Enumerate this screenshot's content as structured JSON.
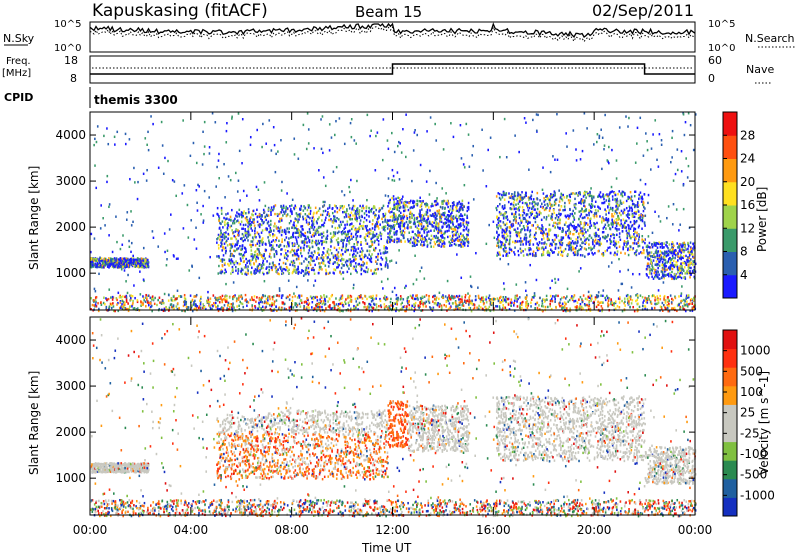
{
  "header": {
    "station": "Kapuskasing (fitACF)",
    "beam": "Beam 15",
    "date": "02/Sep/2011"
  },
  "top_panels": {
    "nsky_label": "N.Sky",
    "nsky_ticks": [
      "10^5",
      "10^0"
    ],
    "nsearch_label": "N.Search",
    "freq_label_1": "Freq.",
    "freq_label_2": "[MHz]",
    "freq_ticks": [
      "18",
      "8"
    ],
    "nave_ticks": [
      "60",
      "0"
    ],
    "nave_label": "Nave",
    "cpid_label": "CPID",
    "cpid_value": "themis 3300"
  },
  "x_axis": {
    "label": "Time UT",
    "ticks": [
      "00:00",
      "04:00",
      "08:00",
      "12:00",
      "16:00",
      "20:00",
      "00:00"
    ],
    "hours": [
      0,
      4,
      8,
      12,
      16,
      20,
      24
    ]
  },
  "power_panel": {
    "ylabel": "Slant Range [km]",
    "yticks": [
      "4000",
      "3000",
      "2000",
      "1000"
    ],
    "yvalues": [
      4000,
      3000,
      2000,
      1000
    ],
    "colorbar_label": "Power [dB]",
    "colorbar_ticks": [
      "28",
      "24",
      "20",
      "16",
      "12",
      "8",
      "4"
    ],
    "colors": [
      "#1a1aff",
      "#2a5fb0",
      "#3a9a6a",
      "#9fd34a",
      "#ffe020",
      "#ff9a10",
      "#ff5010",
      "#ee1010"
    ]
  },
  "velocity_panel": {
    "ylabel": "Slant Range [km]",
    "yticks": [
      "4000",
      "3000",
      "2000",
      "1000"
    ],
    "yvalues": [
      4000,
      3000,
      2000,
      1000
    ],
    "colorbar_label": "Velocity [m s^-1]",
    "colorbar_ticks": [
      "1000",
      "500",
      "100",
      "25",
      "-25",
      "-100",
      "-500",
      "-1000"
    ],
    "colors": [
      "#1530c0",
      "#2060a0",
      "#2a8a50",
      "#80c040",
      "#c8c8c0",
      "#c8c8c0",
      "#ff9a10",
      "#ff6a10",
      "#ff3010",
      "#e01010"
    ]
  },
  "chart_data": {
    "type": "heatmap",
    "title": "Kapuskasing (fitACF)",
    "xlabel": "Time UT",
    "ylabel": "Slant Range [km]",
    "xlim": [
      0,
      24
    ],
    "ylim": [
      200,
      4500
    ],
    "series": [
      {
        "name": "Power [dB]",
        "clim": [
          0,
          32
        ]
      },
      {
        "name": "Velocity [m s^-1]",
        "clim": [
          -1000,
          1000
        ]
      }
    ],
    "scatter_regions": [
      {
        "t": [
          0.0,
          2.3
        ],
        "r": [
          1150,
          1350
        ]
      },
      {
        "t": [
          5.0,
          7.0
        ],
        "r": [
          1000,
          2400
        ]
      },
      {
        "t": [
          7.0,
          10.0
        ],
        "r": [
          1000,
          2500
        ]
      },
      {
        "t": [
          10.0,
          11.8
        ],
        "r": [
          1000,
          2500
        ]
      },
      {
        "t": [
          11.8,
          12.6
        ],
        "r": [
          1700,
          2700
        ]
      },
      {
        "t": [
          12.6,
          15.0
        ],
        "r": [
          1600,
          2600
        ]
      },
      {
        "t": [
          16.1,
          22.0
        ],
        "r": [
          1400,
          2800
        ]
      },
      {
        "t": [
          22.0,
          24.0
        ],
        "r": [
          900,
          1700
        ]
      }
    ],
    "cpid_changes": [
      12.0,
      22.0
    ]
  }
}
